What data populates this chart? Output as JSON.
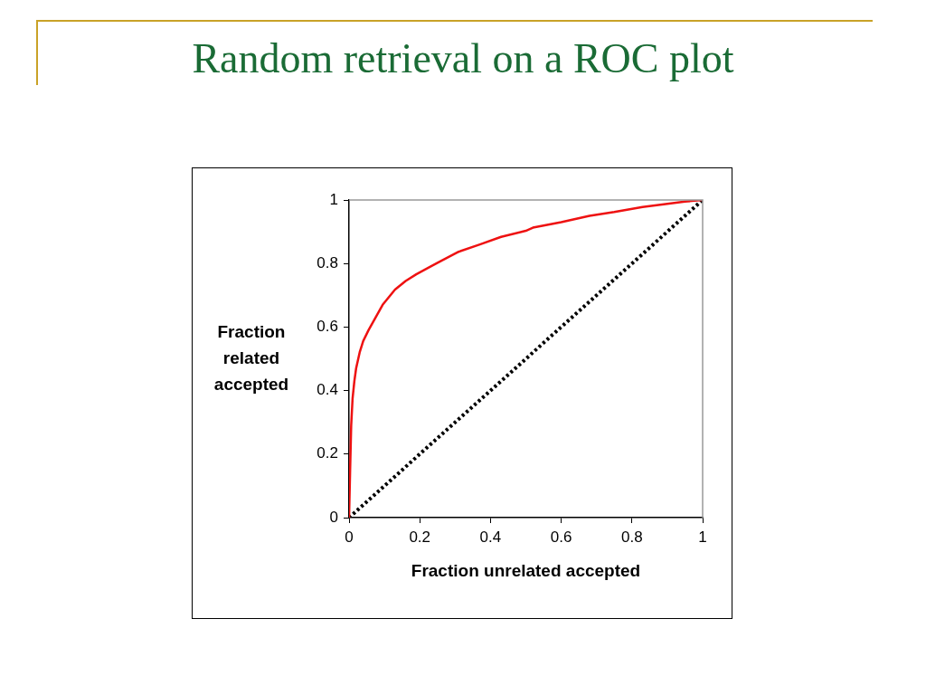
{
  "chart_data": {
    "type": "line",
    "title": "Random retrieval on a ROC plot",
    "xlabel": "Fraction unrelated accepted",
    "ylabel": "Fraction related accepted",
    "xlim": [
      0,
      1
    ],
    "ylim": [
      0,
      1
    ],
    "xticks": [
      0,
      0.2,
      0.4,
      0.6,
      0.8,
      1
    ],
    "yticks": [
      0,
      0.2,
      0.4,
      0.6,
      0.8,
      1
    ],
    "grid": false,
    "legend": false,
    "marker": "none",
    "series": [
      {
        "color": "#ee1111",
        "line_style": "solid",
        "x": [
          0,
          0.003,
          0.006,
          0.01,
          0.015,
          0.02,
          0.03,
          0.04,
          0.055,
          0.07,
          0.095,
          0.13,
          0.16,
          0.19,
          0.23,
          0.26,
          0.31,
          0.37,
          0.43,
          0.5,
          0.52,
          0.6,
          0.68,
          0.75,
          0.83,
          0.9,
          0.95,
          1
        ],
        "values": [
          0,
          0.15,
          0.29,
          0.376,
          0.43,
          0.47,
          0.52,
          0.556,
          0.59,
          0.62,
          0.67,
          0.718,
          0.745,
          0.766,
          0.79,
          0.808,
          0.837,
          0.86,
          0.884,
          0.903,
          0.913,
          0.93,
          0.95,
          0.962,
          0.978,
          0.988,
          0.995,
          1
        ]
      },
      {
        "color": "#000000",
        "line_style": "dotted",
        "x": [
          0,
          1
        ],
        "values": [
          0,
          1
        ]
      }
    ]
  }
}
